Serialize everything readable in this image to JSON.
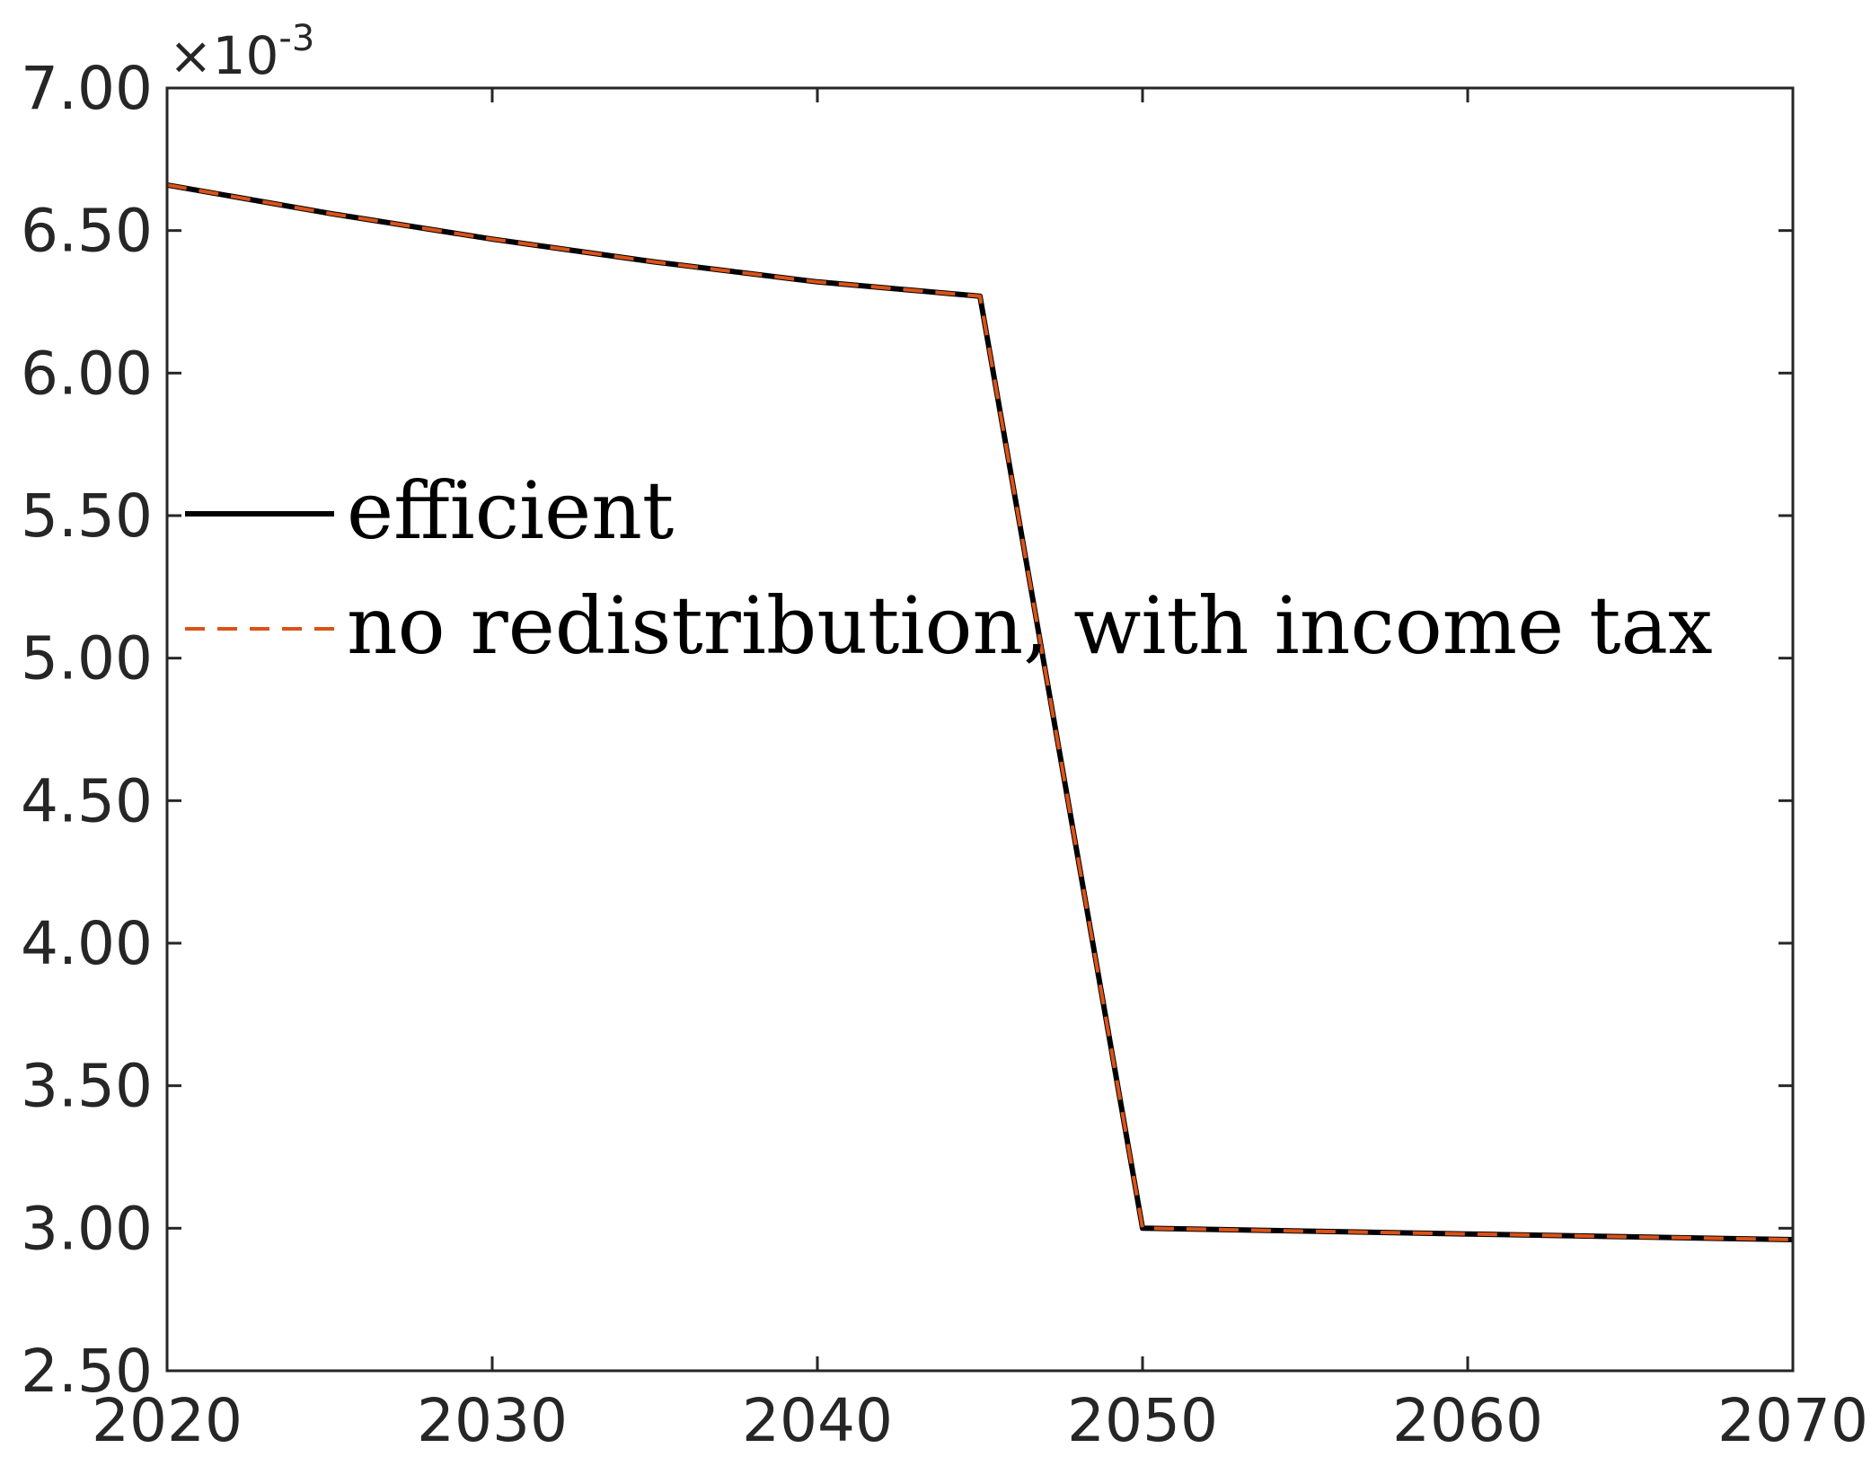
{
  "chart_data": {
    "type": "line",
    "title": "",
    "xlabel": "",
    "ylabel": "",
    "xlim": [
      2020,
      2070
    ],
    "ylim": [
      0.0025,
      0.007
    ],
    "grid": false,
    "legend_position": "center-left",
    "y_exponent_label": {
      "base": "×10",
      "exponent": "-3"
    },
    "x_ticks": [
      {
        "value": 2020,
        "label": "2020"
      },
      {
        "value": 2030,
        "label": "2030"
      },
      {
        "value": 2040,
        "label": "2040"
      },
      {
        "value": 2050,
        "label": "2050"
      },
      {
        "value": 2060,
        "label": "2060"
      },
      {
        "value": 2070,
        "label": "2070"
      }
    ],
    "y_ticks": [
      {
        "value": 0.0025,
        "label": "2.50"
      },
      {
        "value": 0.003,
        "label": "3.00"
      },
      {
        "value": 0.0035,
        "label": "3.50"
      },
      {
        "value": 0.004,
        "label": "4.00"
      },
      {
        "value": 0.0045,
        "label": "4.50"
      },
      {
        "value": 0.005,
        "label": "5.00"
      },
      {
        "value": 0.0055,
        "label": "5.50"
      },
      {
        "value": 0.006,
        "label": "6.00"
      },
      {
        "value": 0.0065,
        "label": "6.50"
      },
      {
        "value": 0.007,
        "label": "7.00"
      }
    ],
    "series": [
      {
        "name": "efficient",
        "color": "#000000",
        "style": "solid",
        "x": [
          2020,
          2025,
          2030,
          2035,
          2040,
          2045,
          2050,
          2055,
          2060,
          2065,
          2070
        ],
        "y": [
          0.00666,
          0.00656,
          0.00647,
          0.00639,
          0.00632,
          0.00627,
          0.003,
          0.00299,
          0.00298,
          0.00297,
          0.00296
        ]
      },
      {
        "name": "no redistribution, with income tax",
        "color": "#D95319",
        "style": "dashed",
        "x": [
          2020,
          2025,
          2030,
          2035,
          2040,
          2045,
          2050,
          2055,
          2060,
          2065,
          2070
        ],
        "y": [
          0.00666,
          0.00656,
          0.00647,
          0.00639,
          0.00632,
          0.00627,
          0.003,
          0.00299,
          0.00298,
          0.00297,
          0.00296
        ]
      }
    ]
  }
}
